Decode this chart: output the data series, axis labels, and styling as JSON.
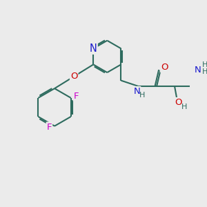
{
  "bg_color": "#ebebeb",
  "bond_color": "#2d6b5e",
  "bond_width": 1.5,
  "atom_colors": {
    "N": "#1a1acc",
    "O": "#cc0000",
    "F": "#cc00cc",
    "C": "#2d6b5e",
    "H": "#2d6b5e"
  },
  "font_size": 9.5,
  "fig_width": 3.0,
  "fig_height": 3.0,
  "dpi": 100,
  "xlim": [
    0,
    10
  ],
  "ylim": [
    0,
    10
  ]
}
